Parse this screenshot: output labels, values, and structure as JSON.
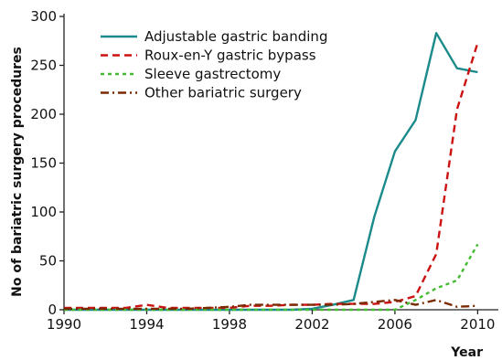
{
  "chart_data": {
    "type": "line",
    "title": "",
    "xlabel": "Year",
    "ylabel": "No of bariatric surgery procedures",
    "xlim": [
      1990,
      2011
    ],
    "ylim": [
      0,
      300
    ],
    "xticks": [
      1990,
      1994,
      1998,
      2002,
      2006,
      2010
    ],
    "yticks": [
      0,
      50,
      100,
      150,
      200,
      250,
      300
    ],
    "grid": false,
    "legend_position": "top-left",
    "x": [
      1990,
      1991,
      1992,
      1993,
      1994,
      1995,
      1996,
      1997,
      1998,
      1999,
      2000,
      2001,
      2002,
      2003,
      2004,
      2005,
      2006,
      2007,
      2008,
      2009,
      2010,
      2011
    ],
    "series": [
      {
        "name": "Adjustable gastric banding",
        "color": "#1a8a8a",
        "dash": "solid",
        "values": [
          0,
          0,
          0,
          0,
          0,
          0,
          0,
          0,
          0,
          0,
          0,
          0,
          1,
          5,
          10,
          95,
          162,
          194,
          283,
          247,
          243,
          null
        ]
      },
      {
        "name": "Roux-en-Y gastric bypass",
        "color": "#cc1111",
        "dash": "dash",
        "values": [
          2,
          2,
          2,
          2,
          5,
          2,
          2,
          2,
          2,
          4,
          4,
          5,
          5,
          6,
          6,
          6,
          8,
          14,
          57,
          205,
          273,
          null
        ]
      },
      {
        "name": "Sleeve gastrectomy",
        "color": "#44bb33",
        "dash": "dot",
        "values": [
          0,
          0,
          0,
          0,
          0,
          0,
          0,
          0,
          0,
          0,
          0,
          0,
          0,
          0,
          0,
          0,
          0,
          10,
          22,
          30,
          67,
          null
        ]
      },
      {
        "name": "Other bariatric surgery",
        "color": "#7a2a00",
        "dash": "dashdot",
        "values": [
          1,
          1,
          1,
          1,
          1,
          1,
          1,
          2,
          3,
          5,
          5,
          5,
          5,
          5,
          6,
          8,
          10,
          5,
          10,
          3,
          4,
          null
        ]
      }
    ]
  }
}
